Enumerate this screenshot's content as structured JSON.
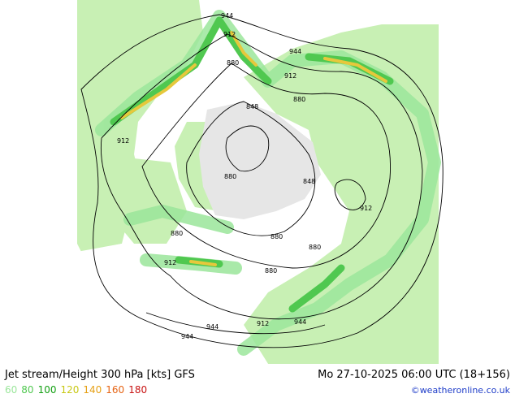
{
  "title": "Jet stream/Height 300 hPa [kts] GFS",
  "valid_time": "Mo 27-10-2025 06:00 UTC (18+156)",
  "credit": "©weatheronline.co.uk",
  "legend": [
    {
      "label": "60",
      "color": "#9be69b"
    },
    {
      "label": "80",
      "color": "#50c850"
    },
    {
      "label": "100",
      "color": "#14a014"
    },
    {
      "label": "120",
      "color": "#c8c814"
    },
    {
      "label": "140",
      "color": "#e6a014"
    },
    {
      "label": "160",
      "color": "#e66414"
    },
    {
      "label": "180",
      "color": "#c81414"
    }
  ],
  "contour_labels": [
    "944",
    "912",
    "944",
    "880",
    "912",
    "848",
    "880",
    "912",
    "880",
    "848",
    "912",
    "880",
    "880",
    "880",
    "912",
    "880",
    "944",
    "912",
    "944",
    "944"
  ],
  "colors": {
    "land": "#c8f0b4",
    "sea": "#ffffff",
    "ice": "#e6e6e6",
    "jet_weak": "#9be69b",
    "jet_mid": "#50c850",
    "jet_strong": "#e6c83c"
  }
}
